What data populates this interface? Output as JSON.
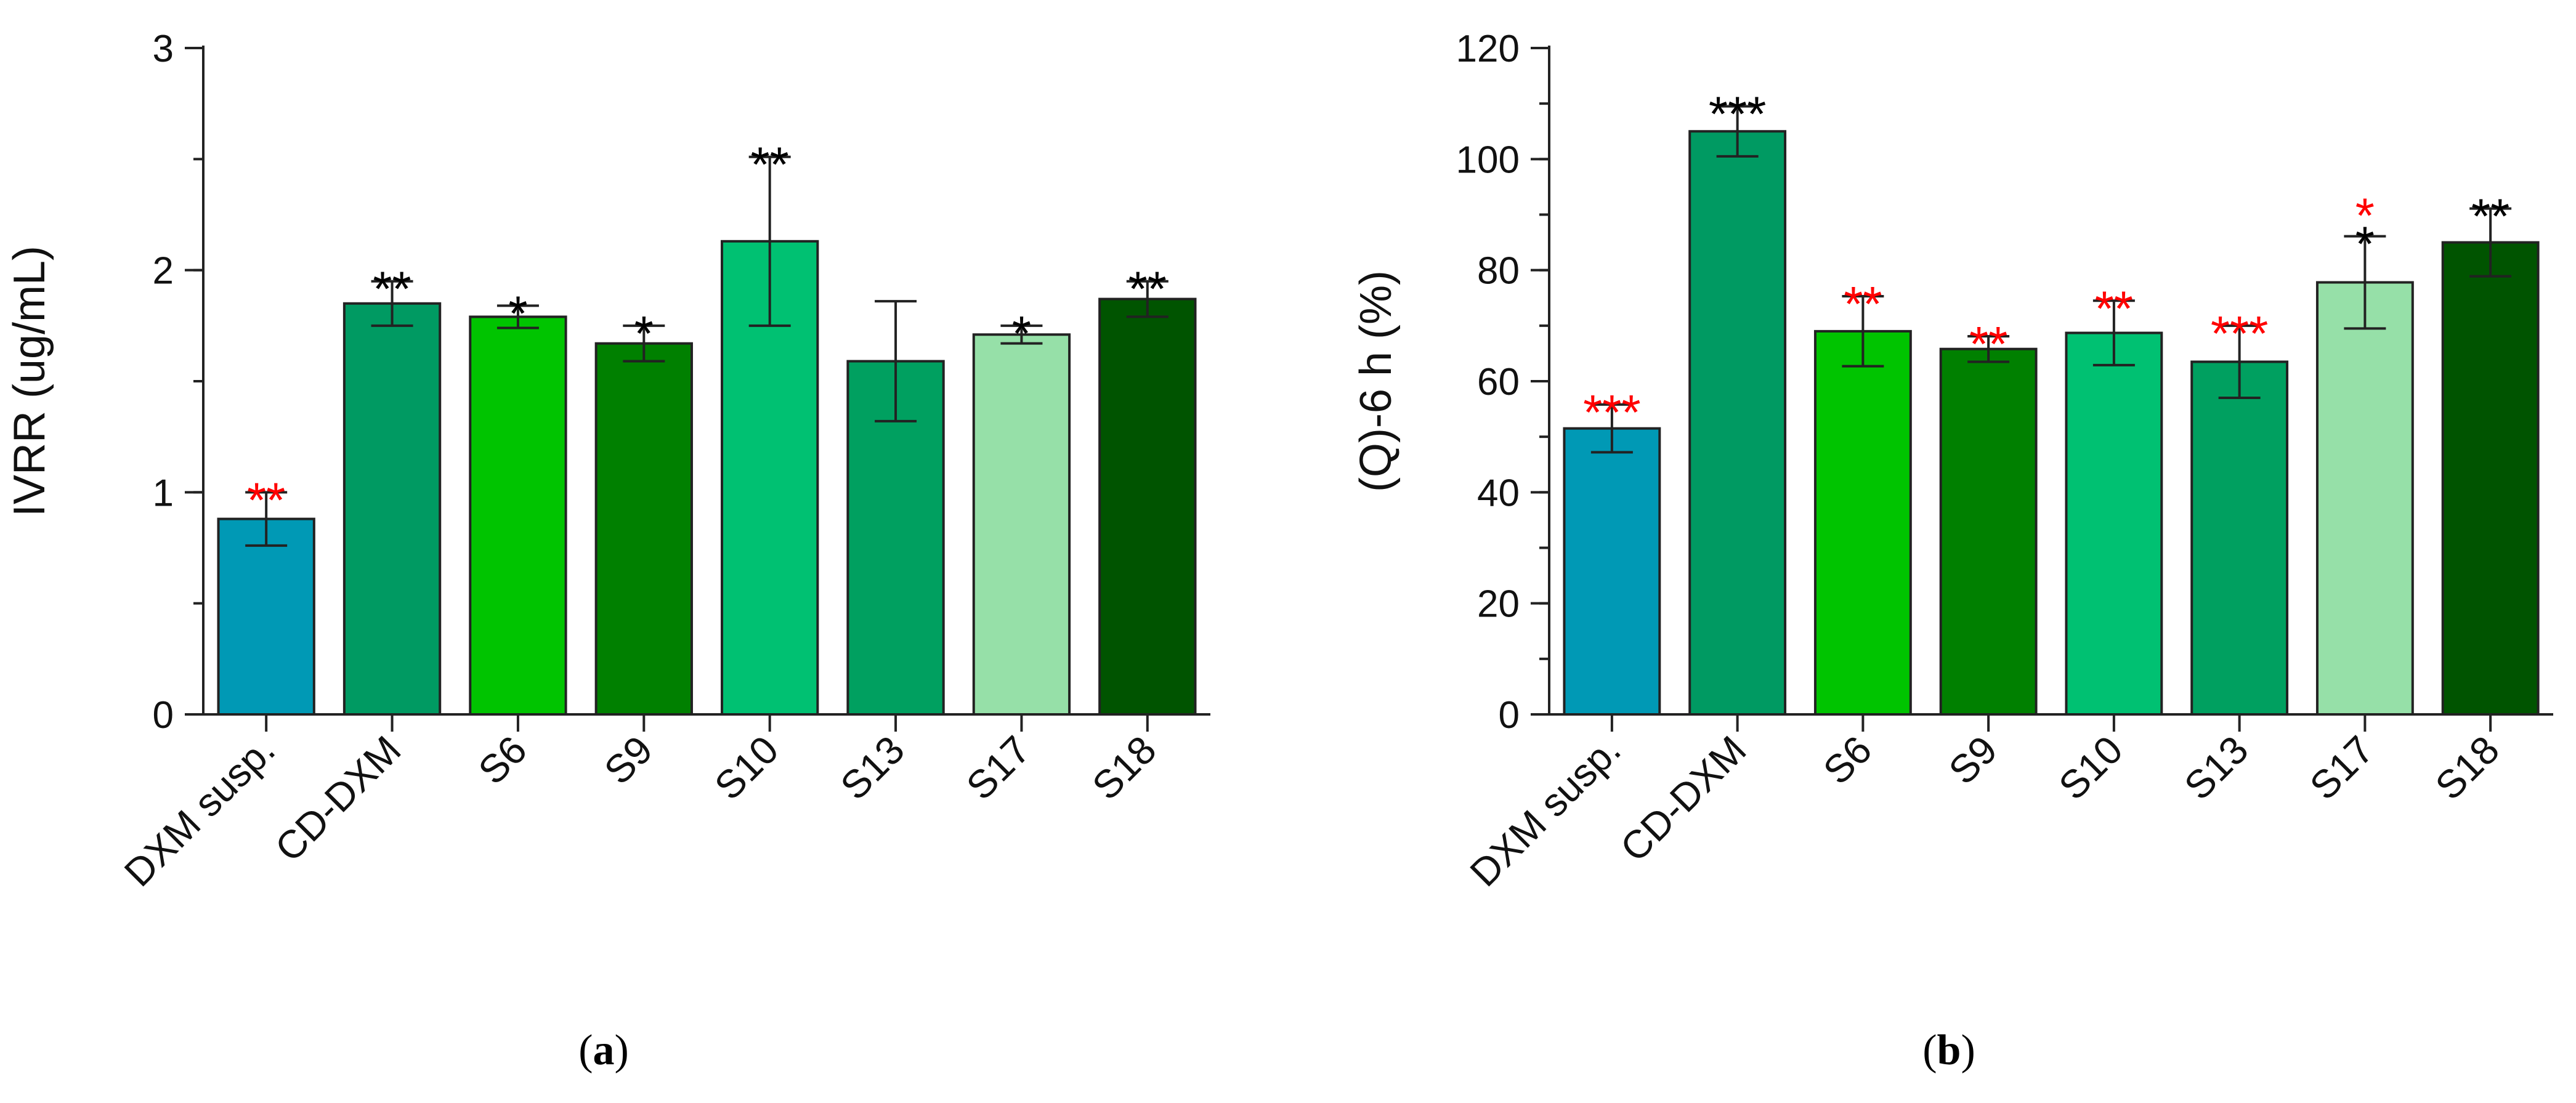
{
  "chart_data": [
    {
      "panel_label": "a",
      "type": "bar",
      "ylabel": "IVRR (ug/mL)",
      "xlabel": "",
      "ylim": [
        0,
        3
      ],
      "yticks": [
        0,
        1,
        2,
        3
      ],
      "ytick_labels": [
        "0",
        "1",
        "2",
        "3"
      ],
      "minor_step": 0.5,
      "grid": false,
      "categories": [
        "DXM susp.",
        "CD-DXM",
        "S6",
        "S9",
        "S10",
        "S13",
        "S17",
        "S18"
      ],
      "values": [
        0.88,
        1.85,
        1.79,
        1.67,
        2.13,
        1.59,
        1.71,
        1.87
      ],
      "errors": [
        0.12,
        0.1,
        0.05,
        0.08,
        0.38,
        0.27,
        0.04,
        0.08
      ],
      "colors": [
        "#0099b5",
        "#009a62",
        "#00c400",
        "#008000",
        "#00c172",
        "#00a060",
        "#96e0a8",
        "#005400"
      ],
      "annotations": [
        [
          {
            "text": "**",
            "color": "#ff0000"
          }
        ],
        [
          {
            "text": "**",
            "color": "#000000"
          }
        ],
        [
          {
            "text": "*",
            "color": "#000000"
          }
        ],
        [
          {
            "text": "*",
            "color": "#000000"
          }
        ],
        [
          {
            "text": "**",
            "color": "#000000"
          }
        ],
        [],
        [
          {
            "text": "*",
            "color": "#000000"
          }
        ],
        [
          {
            "text": "**",
            "color": "#000000"
          }
        ]
      ]
    },
    {
      "panel_label": "b",
      "type": "bar",
      "ylabel": "(Q)-6 h (%)",
      "xlabel": "",
      "ylim": [
        0,
        120
      ],
      "yticks": [
        0,
        20,
        40,
        60,
        80,
        100,
        120
      ],
      "ytick_labels": [
        "0",
        "20",
        "40",
        "60",
        "80",
        "100",
        "120"
      ],
      "minor_step": 10,
      "grid": false,
      "categories": [
        "DXM susp.",
        "CD-DXM",
        "S6",
        "S9",
        "S10",
        "S13",
        "S17",
        "S18"
      ],
      "values": [
        51.5,
        105,
        69,
        65.8,
        68.7,
        63.5,
        77.8,
        85
      ],
      "errors": [
        4.3,
        4.5,
        6.3,
        2.3,
        5.8,
        6.5,
        8.3,
        6.1
      ],
      "colors": [
        "#0099b5",
        "#009a62",
        "#00c400",
        "#008000",
        "#00c172",
        "#00a060",
        "#96e0a8",
        "#005400"
      ],
      "annotations": [
        [
          {
            "text": "***",
            "color": "#ff0000"
          }
        ],
        [
          {
            "text": "***",
            "color": "#000000"
          }
        ],
        [
          {
            "text": "**",
            "color": "#ff0000"
          }
        ],
        [
          {
            "text": "**",
            "color": "#ff0000"
          }
        ],
        [
          {
            "text": "**",
            "color": "#ff0000"
          }
        ],
        [
          {
            "text": "***",
            "color": "#ff0000"
          }
        ],
        [
          {
            "text": "*",
            "color": "#000000"
          },
          {
            "text": "*",
            "color": "#ff0000"
          }
        ],
        [
          {
            "text": "**",
            "color": "#000000"
          }
        ]
      ]
    }
  ],
  "captions": {
    "a": {
      "open": "(",
      "letter": "a",
      "close": ")"
    },
    "b": {
      "open": "(",
      "letter": "b",
      "close": ")"
    }
  }
}
